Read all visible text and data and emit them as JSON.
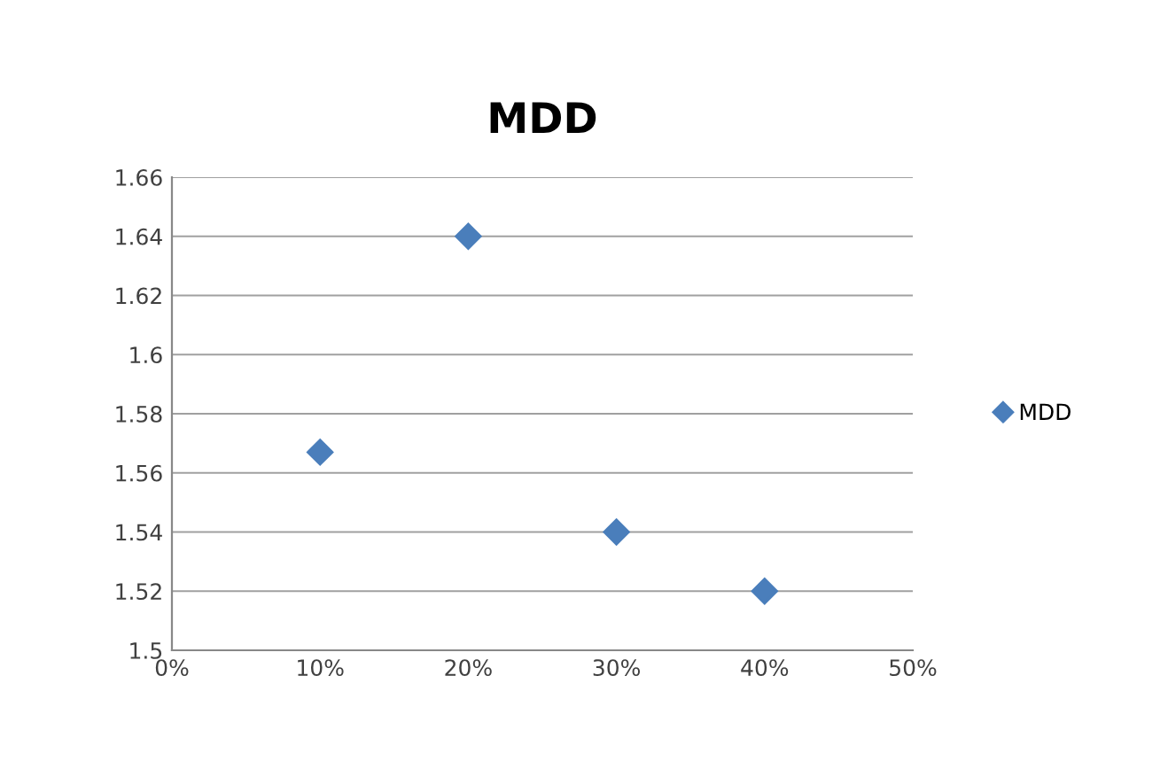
{
  "chart_data": {
    "type": "scatter",
    "title": "MDD",
    "x": [
      10,
      20,
      30,
      40
    ],
    "series": [
      {
        "name": "MDD",
        "color": "#4a7ebb",
        "values": [
          1.567,
          1.64,
          1.54,
          1.52
        ]
      }
    ],
    "xlim": [
      0,
      50
    ],
    "xticks": [
      {
        "value": 0,
        "label": "0%"
      },
      {
        "value": 10,
        "label": "10%"
      },
      {
        "value": 20,
        "label": "20%"
      },
      {
        "value": 30,
        "label": "30%"
      },
      {
        "value": 40,
        "label": "40%"
      },
      {
        "value": 50,
        "label": "50%"
      }
    ],
    "ylim": [
      1.5,
      1.66
    ],
    "yticks": [
      1.5,
      1.52,
      1.54,
      1.56,
      1.58,
      1.6,
      1.62,
      1.64,
      1.66
    ],
    "grid": "y",
    "legend": "right",
    "marker": "diamond"
  }
}
